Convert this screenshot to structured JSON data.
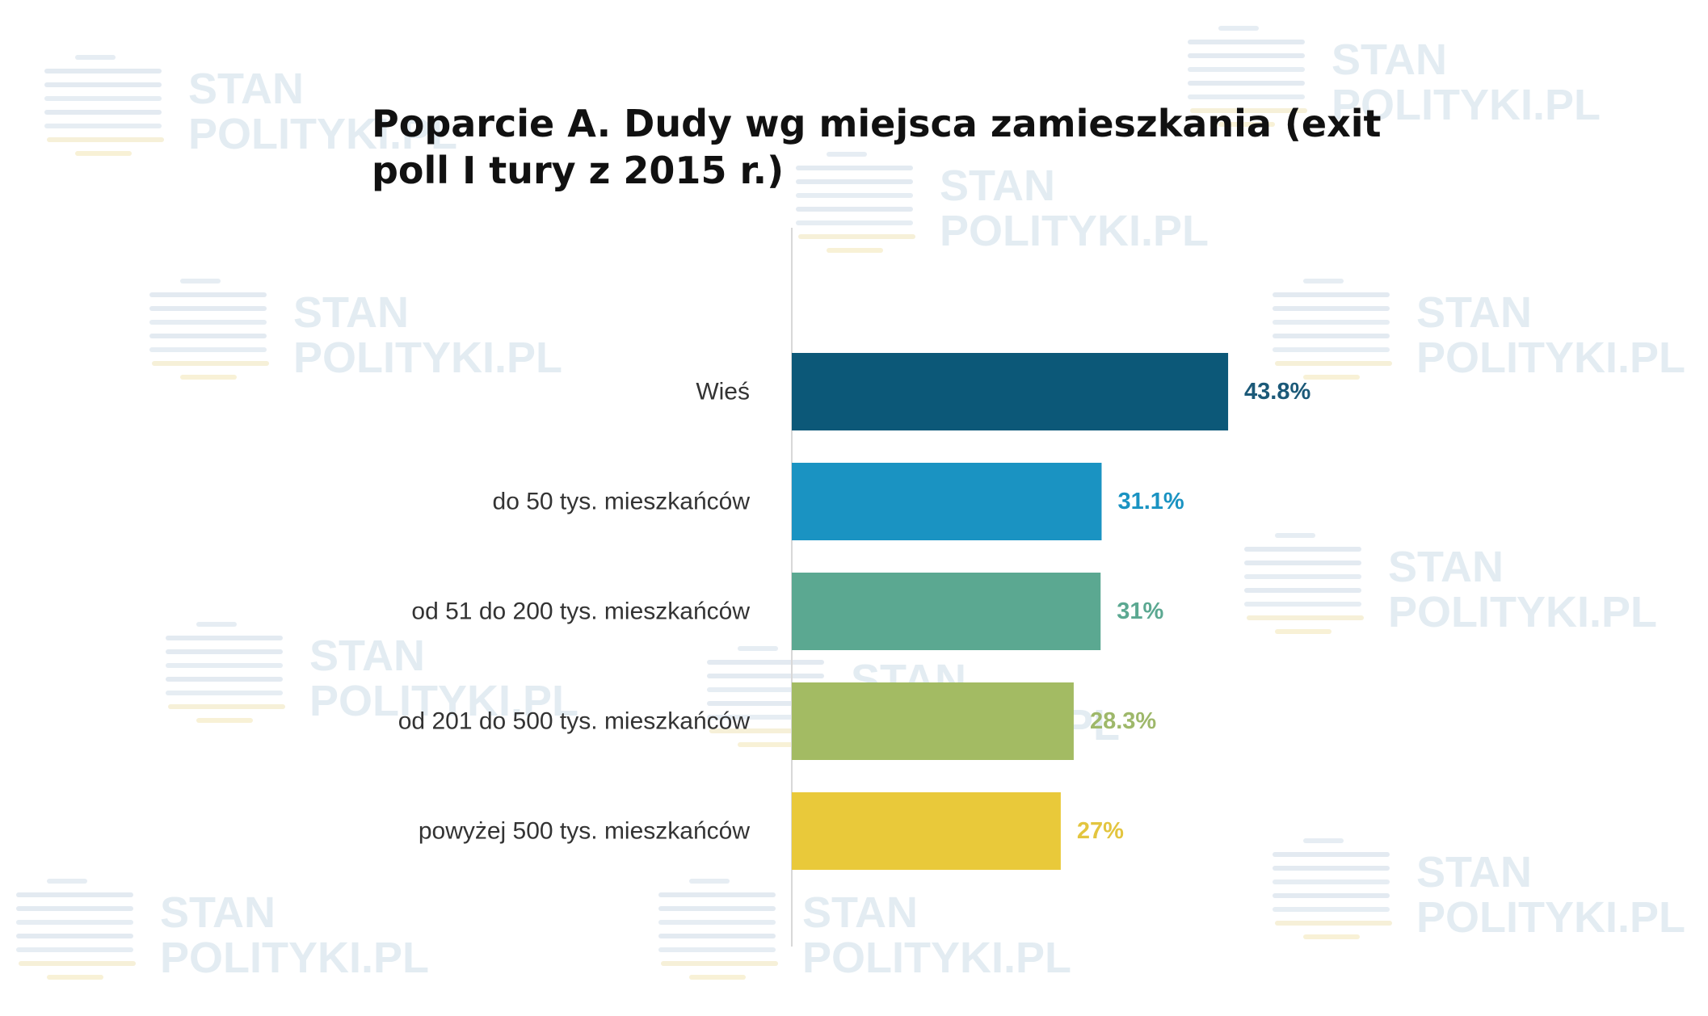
{
  "watermark": {
    "line1": "STAN",
    "line2": "POLITYKI.PL"
  },
  "chart_data": {
    "type": "bar",
    "orientation": "horizontal",
    "title": "Poparcie A. Dudy wg miejsca zamieszkania (exit poll I tury z 2015 r.)",
    "categories": [
      "Wieś",
      "do 50 tys. mieszkańców",
      "od 51 do 200 tys. mieszkańców",
      "od 201 do 500 tys. mieszkańców",
      "powyżej 500 tys. mieszkańców"
    ],
    "values": [
      43.8,
      31.1,
      31,
      28.3,
      27
    ],
    "value_labels": [
      "43.8%",
      "31.1%",
      "31%",
      "28.3%",
      "27%"
    ],
    "colors": [
      "#0c5878",
      "#1a93c2",
      "#5ba891",
      "#a3bb63",
      "#e9c93a"
    ],
    "label_colors": [
      "#1b5978",
      "#1a93c2",
      "#5ba891",
      "#9eb86a",
      "#e3c53f"
    ],
    "xlim": [
      0,
      60
    ],
    "grid": false,
    "legend": "none"
  }
}
